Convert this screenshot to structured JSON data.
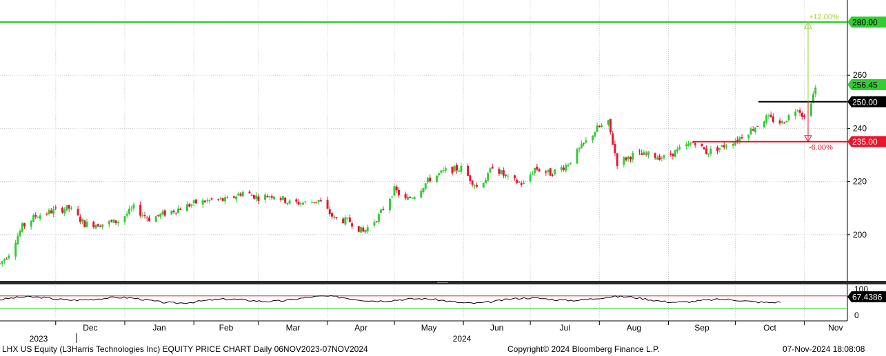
{
  "footer": {
    "left": "LHX US Equity (L3Harris Technologies Inc) EQUITY PRICE CHART  Daily 06NOV2023-07NOV2024",
    "center": "Copyright© 2024 Bloomberg Finance L.P.",
    "right": "07-Nov-2024 18:08:08"
  },
  "chart_data": {
    "type": "candlestick",
    "ylim": [
      186,
      283
    ],
    "yticks": [
      "200",
      "220",
      "240",
      "260"
    ],
    "months": [
      "Dec",
      "Jan",
      "Feb",
      "Mar",
      "Apr",
      "May",
      "Jun",
      "Jul",
      "Aug",
      "Sep",
      "Oct",
      "Nov"
    ],
    "years": [
      "2023",
      "2024"
    ],
    "price_levels": [
      {
        "label": "280.00",
        "value": 280.0,
        "color": "#22cc22"
      },
      {
        "label": "256.45",
        "value": 256.45,
        "color": "#22cc22"
      },
      {
        "label": "250.00",
        "value": 250.0,
        "color": "#000000"
      },
      {
        "label": "235.00",
        "value": 235.0,
        "color": "#e8152f"
      }
    ],
    "targets": [
      {
        "label": "+12.00%",
        "from": 250.0,
        "to": 280.0,
        "color": "#9acd32"
      },
      {
        "label": "-6.00%",
        "from": 250.0,
        "to": 235.0,
        "color": "#e8152f"
      }
    ],
    "colors": {
      "up": "#33cc33",
      "down": "#e8152f"
    },
    "control_points": [
      [
        "2023-11-06",
        189
      ],
      [
        "2023-11-10",
        193
      ],
      [
        "2023-11-16",
        203
      ],
      [
        "2023-11-22",
        207
      ],
      [
        "2023-11-30",
        209
      ],
      [
        "2023-12-07",
        210
      ],
      [
        "2023-12-14",
        204
      ],
      [
        "2023-12-21",
        204
      ],
      [
        "2023-12-29",
        205
      ],
      [
        "2024-01-05",
        210
      ],
      [
        "2024-01-12",
        206
      ],
      [
        "2024-01-19",
        208
      ],
      [
        "2024-01-26",
        210
      ],
      [
        "2024-02-02",
        212
      ],
      [
        "2024-02-09",
        213
      ],
      [
        "2024-02-16",
        213
      ],
      [
        "2024-02-23",
        216
      ],
      [
        "2024-03-01",
        214
      ],
      [
        "2024-03-08",
        215
      ],
      [
        "2024-03-15",
        212
      ],
      [
        "2024-03-22",
        212
      ],
      [
        "2024-03-28",
        213
      ],
      [
        "2024-04-04",
        206
      ],
      [
        "2024-04-11",
        205
      ],
      [
        "2024-04-17",
        201
      ],
      [
        "2024-04-24",
        207
      ],
      [
        "2024-05-01",
        217
      ],
      [
        "2024-05-06",
        213
      ],
      [
        "2024-05-10",
        215
      ],
      [
        "2024-05-17",
        221
      ],
      [
        "2024-05-24",
        224
      ],
      [
        "2024-05-31",
        225
      ],
      [
        "2024-06-07",
        218
      ],
      [
        "2024-06-12",
        222
      ],
      [
        "2024-06-14",
        226
      ],
      [
        "2024-06-21",
        221
      ],
      [
        "2024-06-28",
        219
      ],
      [
        "2024-07-03",
        225
      ],
      [
        "2024-07-10",
        223
      ],
      [
        "2024-07-17",
        226
      ],
      [
        "2024-07-24",
        233
      ],
      [
        "2024-07-31",
        240
      ],
      [
        "2024-08-05",
        242
      ],
      [
        "2024-08-09",
        227
      ],
      [
        "2024-08-16",
        230
      ],
      [
        "2024-08-23",
        230
      ],
      [
        "2024-08-30",
        229
      ],
      [
        "2024-09-06",
        232
      ],
      [
        "2024-09-13",
        235
      ],
      [
        "2024-09-18",
        231
      ],
      [
        "2024-09-25",
        233
      ],
      [
        "2024-10-02",
        236
      ],
      [
        "2024-10-09",
        240
      ],
      [
        "2024-10-15",
        244
      ],
      [
        "2024-10-22",
        242
      ],
      [
        "2024-10-29",
        248
      ],
      [
        "2024-11-01",
        244
      ],
      [
        "2024-11-06",
        255
      ]
    ]
  },
  "rsi_data": {
    "current_label": "67.4386",
    "ticks": [
      "100",
      "0"
    ],
    "upper_level": 70,
    "lower_level": 30
  }
}
